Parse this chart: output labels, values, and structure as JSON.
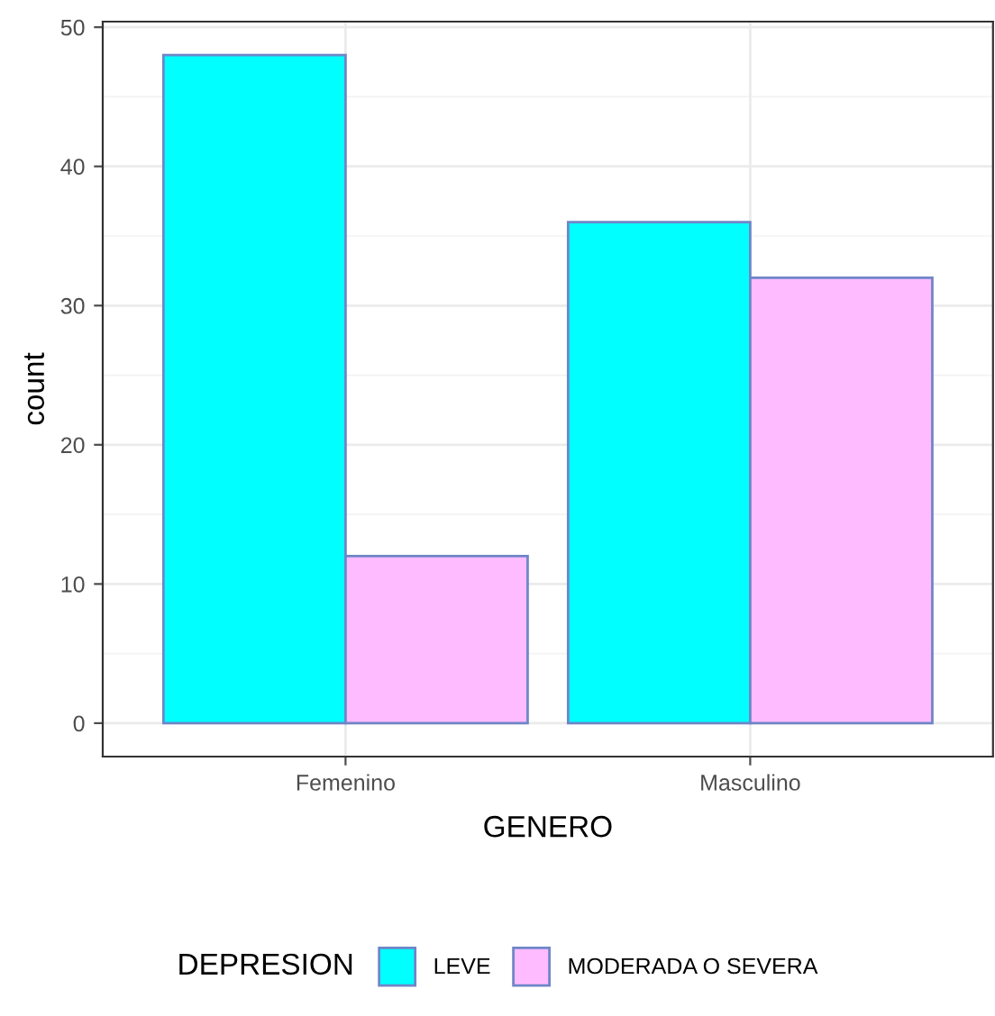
{
  "chart_data": {
    "type": "bar",
    "xlabel": "GENERO",
    "ylabel": "count",
    "legend_title": "DEPRESION",
    "categories": [
      "Femenino",
      "Masculino"
    ],
    "series": [
      {
        "name": "LEVE",
        "color": "#00ffff",
        "values": [
          48,
          36
        ]
      },
      {
        "name": "MODERADA O SEVERA",
        "color": "#ffbbff",
        "values": [
          12,
          32
        ]
      }
    ],
    "ylim": [
      -2.4,
      50.4
    ],
    "yticks": [
      0,
      10,
      20,
      30,
      40,
      50
    ],
    "grid": true,
    "legend": "bottom"
  }
}
